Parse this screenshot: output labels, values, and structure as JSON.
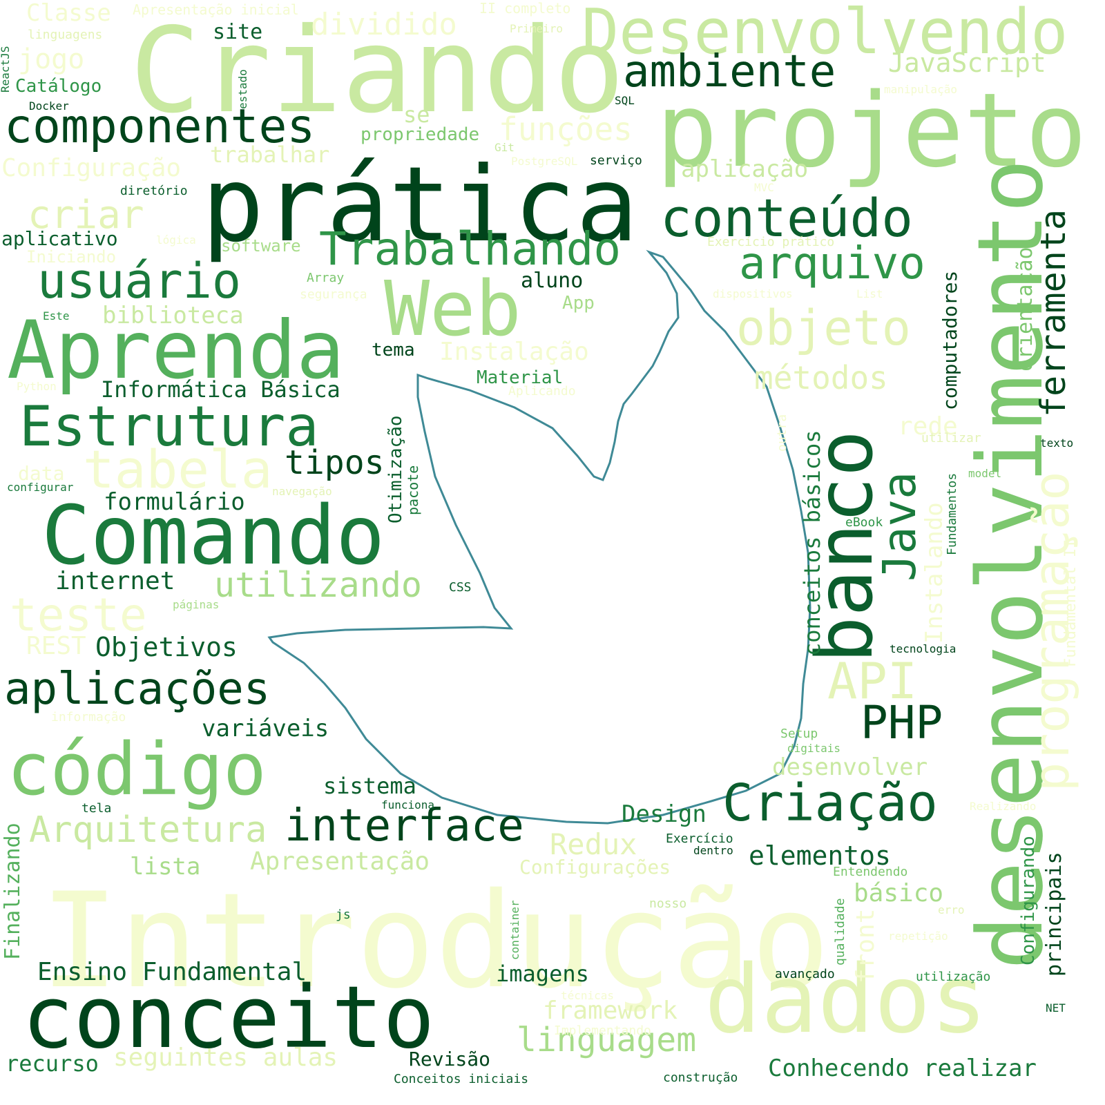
{
  "words": {
    "introducao": "Introdução",
    "criando": "Criando",
    "desenvolvendo": "Desenvolvendo",
    "projeto": "projeto",
    "pratica": "prática",
    "componentes": "componentes",
    "ambiente": "ambiente",
    "conteudo": "conteúdo",
    "trabalhando": "Trabalhando",
    "arquivo": "arquivo",
    "usuario": "usuário",
    "web": "Web",
    "aprenda": "Aprenda",
    "objeto": "objeto",
    "metodos": "métodos",
    "estrutura": "Estrutura",
    "tabela": "tabela",
    "tipos": "tipos",
    "comando": "Comando",
    "formulario": "formulário",
    "utilizando": "utilizando",
    "internet": "internet",
    "teste": "teste",
    "objetivos": "Objetivos",
    "aplicacoes": "aplicações",
    "codigo": "código",
    "variaveis": "variáveis",
    "sistema": "sistema",
    "interface": "interface",
    "arquitetura": "Arquitetura",
    "criacao": "Criação",
    "php": "PHP",
    "api": "API",
    "java": "Java",
    "banco": "banco",
    "desenvolvimento": "desenvolvimento",
    "programacao": "programação",
    "ferramenta": "ferramenta",
    "orientacao": "orientação",
    "conceitos_basicos": "conceitos básicos",
    "computadores": "computadores",
    "conceito": "conceito",
    "dados": "dados",
    "ensino_fundamental": "Ensino Fundamental",
    "imagens": "imagens",
    "linguagem": "linguagem",
    "seguintes_aulas": "seguintes aulas",
    "recurso": "recurso",
    "revisao": "Revisão",
    "conceitos_iniciais": "Conceitos iniciais",
    "construcao": "construção",
    "conhecendo_realizar": "Conhecendo realizar",
    "framework": "framework",
    "implementando": "Implementando",
    "tecnicas": "técnicas",
    "apresentacao": "Apresentação",
    "configuracoes": "Configurações",
    "lista": "lista",
    "redux": "Redux",
    "design": "Design",
    "elementos": "elementos",
    "basico": "básico",
    "entendendo": "Entendendo",
    "exercicio": "Exercício",
    "dentro": "dentro",
    "nosso": "nosso",
    "erro": "erro",
    "repeticao": "repetição",
    "avancado": "avançado",
    "utilizacao": "utilização",
    "net": "NET",
    "principais": "principais",
    "configurando": "Configurando",
    "front": "front",
    "qualidade": "qualidade",
    "container": "container",
    "js": "js",
    "funciona": "funciona",
    "tela": "tela",
    "finalizando": "Finalizando",
    "desenvolver": "desenvolver",
    "digitais": "digitais",
    "setup": "Setup",
    "realizando": "Realizando",
    "tecnologia": "tecnologia",
    "instalando": "Instalando",
    "fundamentos": "Fundamentos",
    "ebook": "eBook",
    "model": "model",
    "utilizar": "utilizar",
    "texto": "texto",
    "rede": "rede",
    "outra": "outra",
    "fundamental_ii": "Fundamental II",
    "informacao": "informação",
    "rest": "REST",
    "paginas": "páginas",
    "css": "CSS",
    "otimizacao": "Otimização",
    "pacote": "pacote",
    "navegacao": "navegação",
    "material": "Material",
    "aplicando": "Aplicando",
    "instalacao": "Instalação",
    "informatica_basica": "Informática Básica",
    "tema": "tema",
    "data": "data",
    "configurar": "configurar",
    "python": "Python",
    "este": "Este",
    "biblioteca": "biblioteca",
    "array": "Array",
    "seguranca": "segurança",
    "aluno": "aluno",
    "app": "App",
    "dispositivos": "dispositivos",
    "list": "List",
    "exercicio_pratico": "Exercício prático",
    "aplicativo": "aplicativo",
    "logica": "lógica",
    "iniciando": "Iniciando",
    "software": "software",
    "criar": "criar",
    "diretorio": "diretório",
    "configuracao": "Configuração",
    "trabalhar": "trabalhar",
    "postgresql": "PostgreSQL",
    "servico": "serviço",
    "mvc": "MVC",
    "aplicacao": "aplicação",
    "git": "Git",
    "funcoes": "funções",
    "propriedade": "propriedade",
    "se": "se",
    "sql": "SQL",
    "manipulacao": "manipulação",
    "javascript": "JavaScript",
    "docker": "Docker",
    "catalogo": "Catálogo",
    "estado": "estado",
    "reactjs": "ReactJS",
    "jogo": "jogo",
    "linguagens": "linguagens",
    "classe": "Classe",
    "apresentacao_inicial": "Apresentação inicial",
    "dividido": "dividido",
    "site": "site",
    "ii_completo": "II completo",
    "primeiro": "Primeiro"
  }
}
